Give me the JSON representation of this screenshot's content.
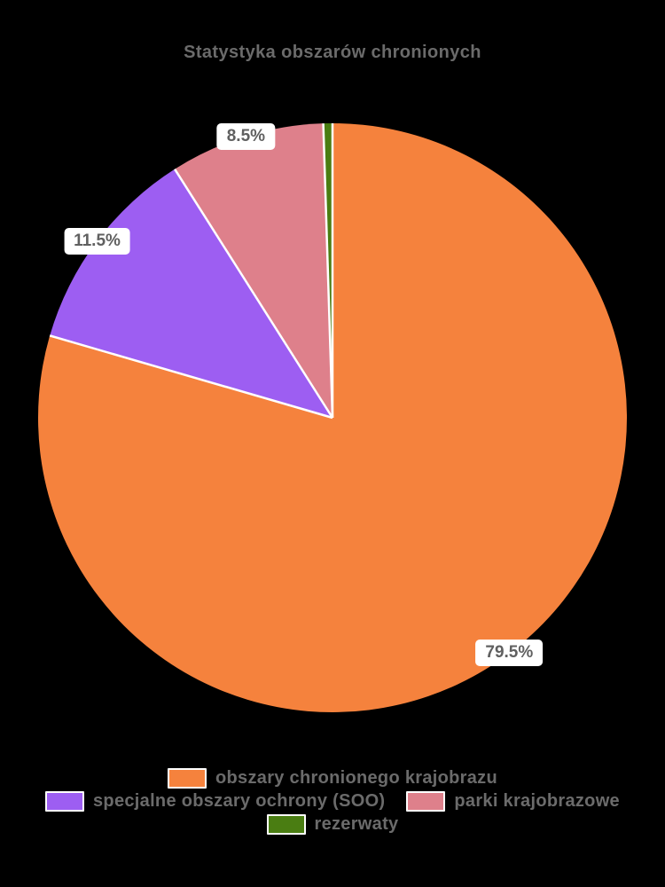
{
  "title": "Statystyka obszarów chronionych",
  "colors": {
    "background": "#000000",
    "title_text": "#6b6b6b",
    "legend_text": "#6b6b6b",
    "label_text": "#606060",
    "label_box_bg": "#ffffff",
    "slice_separator": "#ffffff"
  },
  "chart_data": {
    "type": "pie",
    "title": "Statystyka obszarów chronionych",
    "start_angle": "12-o-clock",
    "direction": "clockwise",
    "legend_position": "bottom",
    "slices": [
      {
        "label": "obszary chronionego krajobrazu",
        "value": 79.5,
        "pct_label": "79.5%",
        "color": "#f5823d"
      },
      {
        "label": "specjalne obszary ochrony (SOO)",
        "value": 11.5,
        "pct_label": "11.5%",
        "color": "#9d5ef2"
      },
      {
        "label": "parki krajobrazowe",
        "value": 8.5,
        "pct_label": "8.5%",
        "color": "#de808b"
      },
      {
        "label": "rezerwaty",
        "value": 0.5,
        "pct_label": "",
        "color": "#4a7d12"
      }
    ]
  }
}
